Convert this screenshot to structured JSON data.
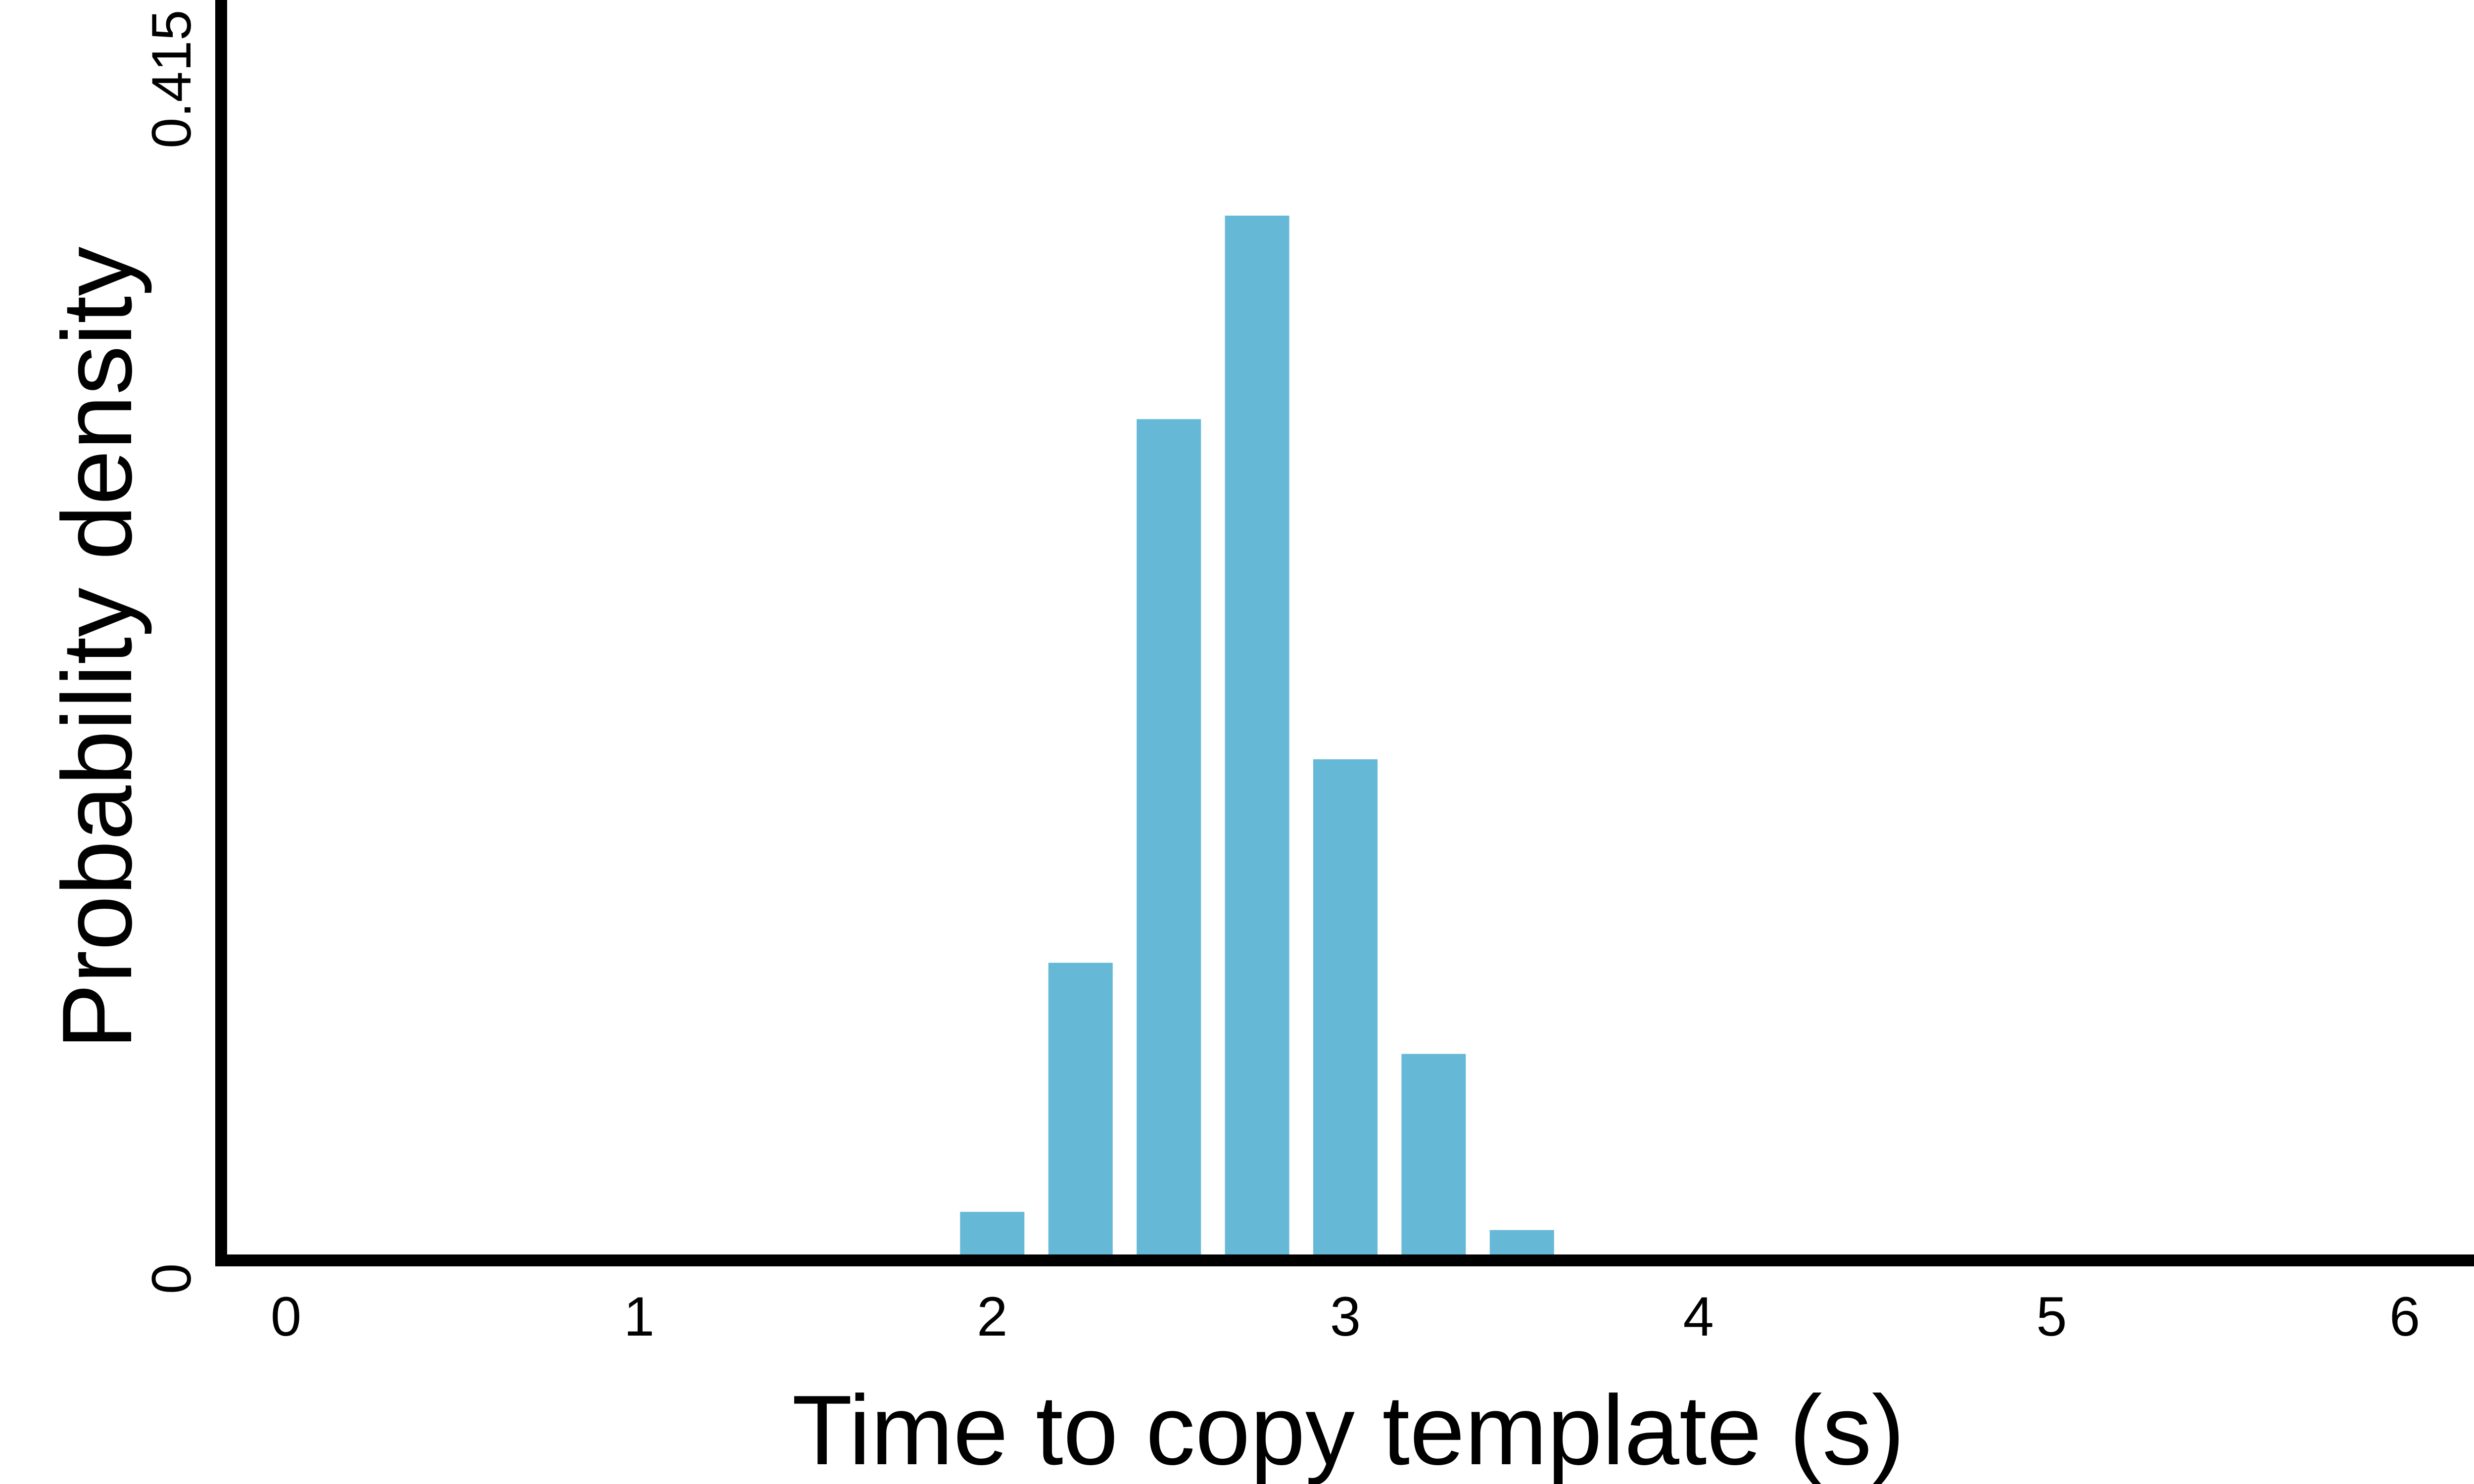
{
  "chart_data": {
    "type": "bar",
    "title": "",
    "xlabel": "Time to copy template (s)",
    "ylabel": "Probability density",
    "xlim": [
      -0.2,
      6.2
    ],
    "ylim": [
      0,
      0.415
    ],
    "x_ticks": [
      {
        "value": 0,
        "label": "0"
      },
      {
        "value": 1,
        "label": "1"
      },
      {
        "value": 2,
        "label": "2"
      },
      {
        "value": 3,
        "label": "3"
      },
      {
        "value": 4,
        "label": "4"
      },
      {
        "value": 5,
        "label": "5"
      },
      {
        "value": 6,
        "label": "6"
      }
    ],
    "y_ticks": [
      {
        "value": 0,
        "label": "0"
      },
      {
        "value": 0.415,
        "label": "0.415"
      }
    ],
    "bin_width": 0.25,
    "x": [
      2.0,
      2.25,
      2.5,
      2.75,
      3.0,
      3.25,
      3.5,
      3.75,
      4.0,
      4.25
    ],
    "values": [
      0.016,
      0.098,
      0.277,
      0.344,
      0.165,
      0.068,
      0.01,
      0.0005,
      0.0001,
      0.0005
    ],
    "bar_color": "#66b9d6",
    "axis_color": "#000000",
    "grid": false,
    "legend": "none"
  }
}
